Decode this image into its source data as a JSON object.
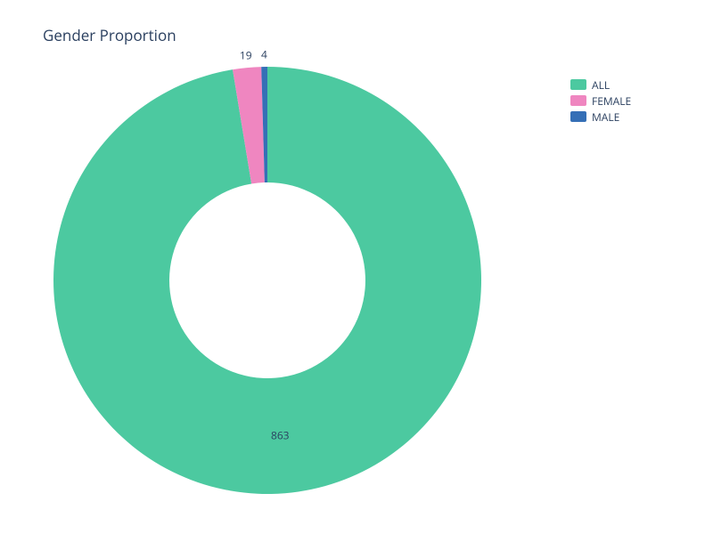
{
  "title": "Gender Proportion",
  "chart": {
    "type": "donut",
    "outer_radius": 240,
    "inner_radius": 110,
    "segments": [
      {
        "name": "ALL",
        "value": 863,
        "color": "#4cc9a0"
      },
      {
        "name": "FEMALE",
        "value": 19,
        "color": "#ef86c0"
      },
      {
        "name": "MALE",
        "value": 4,
        "color": "#356fb6"
      }
    ],
    "label_color": "#2a3f5f",
    "label_fontsize": 12,
    "title_color": "#2a3f5f",
    "title_fontsize": 17,
    "background_color": "#ffffff",
    "start_angle_deg": -90
  },
  "legend": {
    "items": [
      {
        "label": "ALL",
        "color": "#4cc9a0"
      },
      {
        "label": "FEMALE",
        "color": "#ef86c0"
      },
      {
        "label": "MALE",
        "color": "#356fb6"
      }
    ]
  }
}
